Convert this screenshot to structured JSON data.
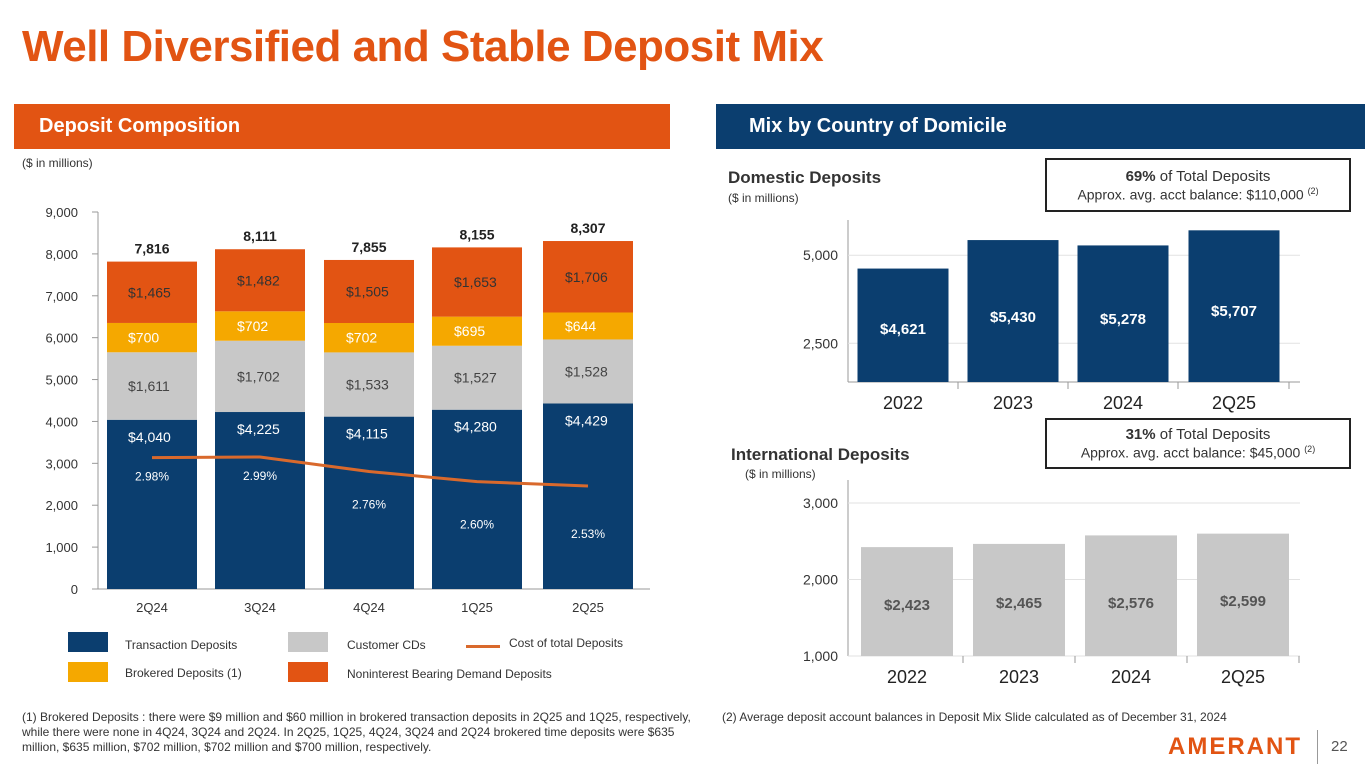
{
  "title": "Well Diversified and Stable Deposit Mix",
  "left_header": "Deposit Composition",
  "right_header": "Mix by Country of Domicile",
  "units_note": "($ in millions)",
  "colors": {
    "transaction": "#0B3E6F",
    "cds": "#C8C8C8",
    "brokered": "#F5A800",
    "nonint": "#E25413",
    "line": "#D9692C"
  },
  "chart_data": [
    {
      "type": "bar",
      "stacked": true,
      "categories": [
        "2Q24",
        "3Q24",
        "4Q24",
        "1Q25",
        "2Q25"
      ],
      "series": [
        {
          "name": "Transaction Deposits",
          "values": [
            4040,
            4225,
            4115,
            4280,
            4429
          ],
          "labels": [
            "$4,040",
            "$4,225",
            "$4,115",
            "$4,280",
            "$4,429"
          ]
        },
        {
          "name": "Customer CDs",
          "values": [
            1611,
            1702,
            1533,
            1527,
            1528
          ],
          "labels": [
            "$1,611",
            "$1,702",
            "$1,533",
            "$1,527",
            "$1,528"
          ]
        },
        {
          "name": "Brokered Deposits (1)",
          "values": [
            700,
            702,
            702,
            695,
            644
          ],
          "labels": [
            "$700",
            "$702",
            "$702",
            "$695",
            "$644"
          ]
        },
        {
          "name": "Noninterest Bearing Demand Deposits",
          "values": [
            1465,
            1482,
            1505,
            1653,
            1706
          ],
          "labels": [
            "$1,465",
            "$1,482",
            "$1,505",
            "$1,653",
            "$1,706"
          ]
        }
      ],
      "totals": [
        "7,816",
        "8,111",
        "7,855",
        "8,155",
        "8,307"
      ],
      "line": {
        "name": "Cost of total Deposits",
        "values": [
          2.98,
          2.99,
          2.76,
          2.6,
          2.53
        ],
        "labels": [
          "2.98%",
          "2.99%",
          "2.76%",
          "2.60%",
          "2.53%"
        ]
      },
      "ylim": [
        0,
        9000
      ],
      "yticks": [
        "0",
        "1,000",
        "2,000",
        "3,000",
        "4,000",
        "5,000",
        "6,000",
        "7,000",
        "8,000",
        "9,000"
      ]
    },
    {
      "type": "bar",
      "title": "Domestic Deposits",
      "ylabel": "($ in millions)",
      "categories": [
        "2022",
        "2023",
        "2024",
        "2Q25"
      ],
      "values": [
        4621,
        5430,
        5278,
        5707
      ],
      "labels": [
        "$4,621",
        "$5,430",
        "$5,278",
        "$5,707"
      ],
      "ylim": [
        1400,
        6000
      ],
      "yticks": [
        {
          "v": 2500,
          "t": "2,500"
        },
        {
          "v": 5000,
          "t": "5,000"
        }
      ]
    },
    {
      "type": "bar",
      "title": "International Deposits",
      "ylabel": "($ in millions)",
      "categories": [
        "2022",
        "2023",
        "2024",
        "2Q25"
      ],
      "values": [
        2423,
        2465,
        2576,
        2599
      ],
      "labels": [
        "$2,423",
        "$2,465",
        "$2,576",
        "$2,599"
      ],
      "ylim": [
        1000,
        3300
      ],
      "yticks": [
        {
          "v": 1000,
          "t": "1,000"
        },
        {
          "v": 2000,
          "t": "2,000"
        },
        {
          "v": 3000,
          "t": "3,000"
        }
      ]
    }
  ],
  "domestic_box": {
    "pct": "69%",
    "pct_text": " of Total Deposits",
    "balance": "Approx. avg. acct balance: $110,000",
    "note": "(2)"
  },
  "intl_box": {
    "pct": "31%",
    "pct_text": " of Total Deposits",
    "balance": "Approx. avg. acct balance: $45,000",
    "note": "(2)"
  },
  "legend": {
    "transaction": "Transaction Deposits",
    "cds": "Customer CDs",
    "line": "Cost of total Deposits",
    "brokered": "Brokered Deposits (1)",
    "nonint": "Noninterest Bearing Demand Deposits"
  },
  "footnote_1": "(1) Brokered Deposits : there were $9 million and $60 million in brokered transaction deposits in 2Q25 and 1Q25, respectively, while there were none in  4Q24, 3Q24 and 2Q24.  In 2Q25, 1Q25, 4Q24, 3Q24 and 2Q24 brokered time deposits were $635 million, $635 million, $702 million, $702 million and $700 million, respectively.",
  "footnote_2": "(2) Average deposit account balances in Deposit Mix Slide calculated as of December 31, 2024",
  "logo": "AMERANT",
  "page_number": "22"
}
